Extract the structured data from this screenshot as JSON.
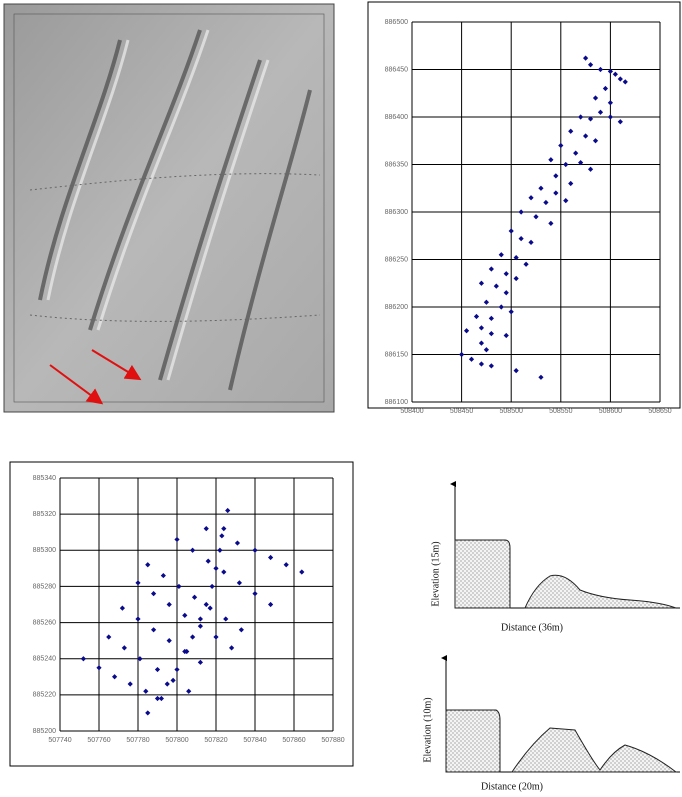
{
  "chart_data": [
    {
      "type": "scatter",
      "color": "#0a0a8c",
      "grid": true,
      "xlim": [
        508400,
        508650
      ],
      "xticks": [
        508400,
        508450,
        508500,
        508550,
        508600,
        508650
      ],
      "ylim": [
        886100,
        886500
      ],
      "yticks": [
        886100,
        886150,
        886200,
        886250,
        886300,
        886350,
        886400,
        886450,
        886500
      ],
      "x": [
        508575,
        508580,
        508590,
        508600,
        508605,
        508610,
        508615,
        508595,
        508585,
        508600,
        508590,
        508570,
        508580,
        508600,
        508610,
        508560,
        508575,
        508585,
        508550,
        508565,
        508540,
        508555,
        508570,
        508580,
        508545,
        508560,
        508530,
        508545,
        508520,
        508535,
        508555,
        508510,
        508525,
        508540,
        508500,
        508510,
        508520,
        508490,
        508505,
        508515,
        508480,
        508495,
        508505,
        508470,
        508485,
        508495,
        508475,
        508490,
        508500,
        508465,
        508480,
        508470,
        508455,
        508480,
        508495,
        508470,
        508475,
        508450,
        508460,
        508470,
        508480,
        508505,
        508530
      ],
      "values": [
        886462,
        886455,
        886450,
        886448,
        886445,
        886440,
        886437,
        886430,
        886420,
        886415,
        886405,
        886400,
        886398,
        886400,
        886395,
        886385,
        886380,
        886375,
        886370,
        886362,
        886355,
        886350,
        886352,
        886345,
        886338,
        886330,
        886325,
        886320,
        886315,
        886310,
        886312,
        886300,
        886295,
        886288,
        886280,
        886272,
        886268,
        886255,
        886252,
        886245,
        886240,
        886235,
        886230,
        886225,
        886222,
        886215,
        886205,
        886200,
        886195,
        886190,
        886188,
        886178,
        886175,
        886172,
        886170,
        886162,
        886155,
        886150,
        886145,
        886140,
        886138,
        886133,
        886126
      ]
    },
    {
      "type": "scatter",
      "color": "#0a0a8c",
      "grid": true,
      "xlim": [
        507740,
        507880
      ],
      "xticks": [
        507740,
        507760,
        507780,
        507800,
        507820,
        507840,
        507860,
        507880
      ],
      "ylim": [
        885200,
        885340
      ],
      "yticks": [
        885200,
        885220,
        885240,
        885260,
        885280,
        885300,
        885320,
        885340
      ],
      "x": [
        507785,
        507790,
        507795,
        507800,
        507805,
        507808,
        507812,
        507815,
        507818,
        507820,
        507822,
        507824,
        507826,
        507752,
        507760,
        507768,
        507776,
        507784,
        507792,
        507765,
        507773,
        507781,
        507790,
        507798,
        507806,
        507772,
        507780,
        507788,
        507796,
        507804,
        507812,
        507780,
        507788,
        507796,
        507804,
        507812,
        507820,
        507828,
        507785,
        507793,
        507801,
        507809,
        507817,
        507825,
        507833,
        507800,
        507808,
        507816,
        507824,
        507832,
        507840,
        507848,
        507815,
        507823,
        507831,
        507840,
        507848,
        507856,
        507864
      ],
      "values": [
        885210,
        885218,
        885226,
        885234,
        885244,
        885252,
        885262,
        885270,
        885280,
        885290,
        885300,
        885312,
        885322,
        885240,
        885235,
        885230,
        885226,
        885222,
        885218,
        885252,
        885246,
        885240,
        885234,
        885228,
        885222,
        885268,
        885262,
        885256,
        885250,
        885244,
        885238,
        885282,
        885276,
        885270,
        885264,
        885258,
        885252,
        885246,
        885292,
        885286,
        885280,
        885274,
        885268,
        885262,
        885256,
        885306,
        885300,
        885294,
        885288,
        885282,
        885276,
        885270,
        885312,
        885308,
        885304,
        885300,
        885296,
        885292,
        885288
      ]
    }
  ],
  "profiles": [
    {
      "y_label": "Elevation (15m)",
      "x_label": "Distance (36m)"
    },
    {
      "y_label": "Elevation (10m)",
      "x_label": "Distance (20m)"
    }
  ]
}
